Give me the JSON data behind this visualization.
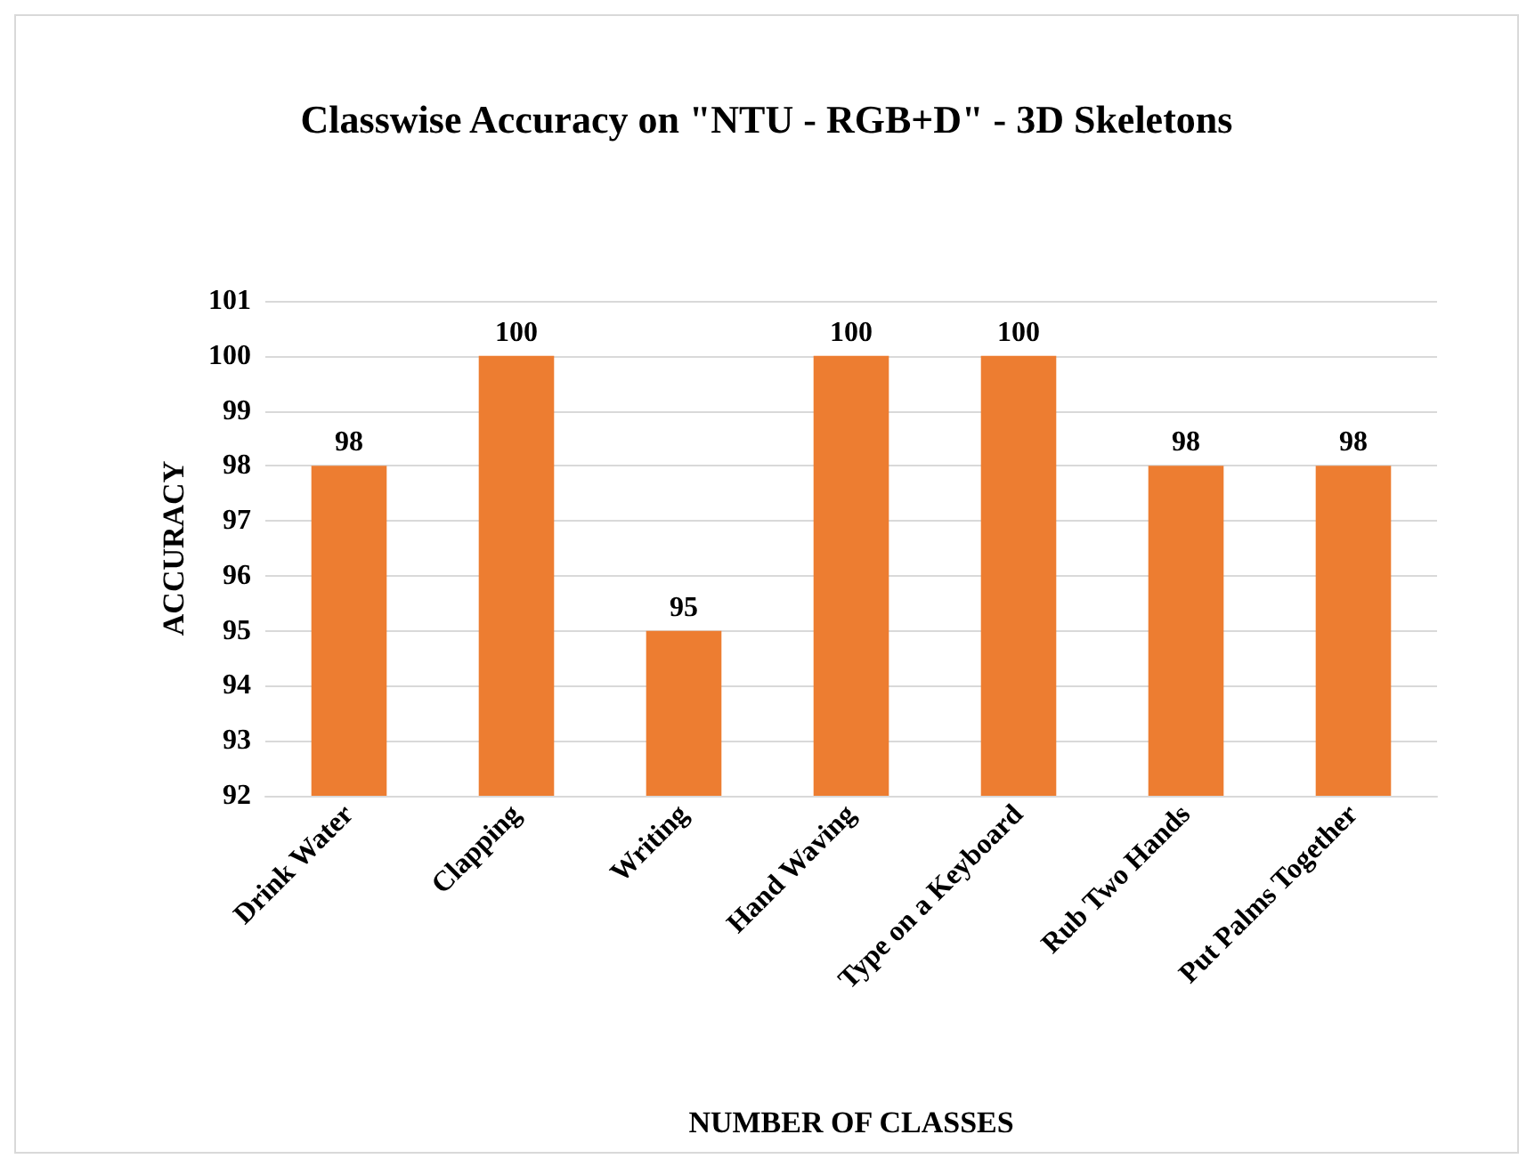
{
  "chart_data": {
    "type": "bar",
    "title": "Classwise Accuracy on \"NTU - RGB+D\" - 3D Skeletons",
    "xlabel": "NUMBER OF CLASSES",
    "ylabel": "ACCURACY",
    "categories": [
      "Drink Water",
      "Clapping",
      "Writing",
      "Hand Waving",
      "Type on a Keyboard",
      "Rub Two Hands",
      "Put Palms Together"
    ],
    "values": [
      98,
      100,
      95,
      100,
      100,
      98,
      98
    ],
    "color": "#ed7d31",
    "ylim": [
      92,
      101
    ],
    "yticks": [
      92,
      93,
      94,
      95,
      96,
      97,
      98,
      99,
      100,
      101
    ],
    "grid": "y",
    "data_labels": true
  }
}
